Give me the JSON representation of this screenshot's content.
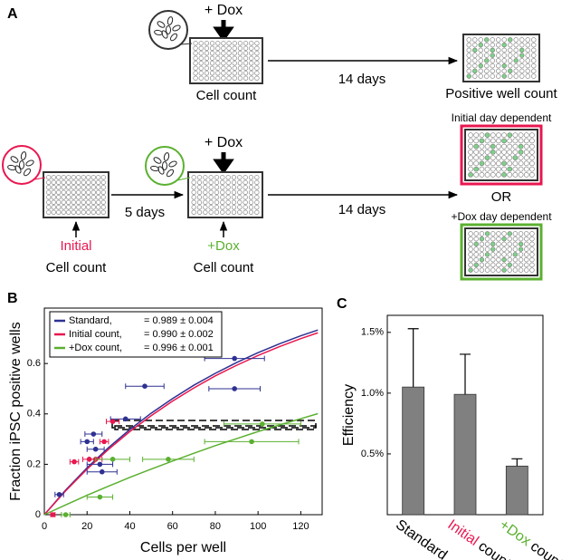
{
  "panel_a": {
    "label": "A",
    "top": {
      "dox": "+ Dox",
      "cell_count": "Cell count",
      "duration": "14 days",
      "result": "Positive well count"
    },
    "bottom": {
      "initial": "Initial",
      "initial_count": "Cell count",
      "first_duration": "5 days",
      "dox": "+ Dox",
      "dox_label": "+Dox",
      "dox_count": "Cell count",
      "second_duration": "14 days",
      "or": "OR",
      "initial_result": "Initial day dependent",
      "dox_result": "+Dox day dependent"
    }
  },
  "chart_data": [
    {
      "panel_label": "B",
      "type": "scatter",
      "xlabel": "Cells per well",
      "ylabel": "Fraction iPSC positive wells",
      "xlim": [
        0,
        130
      ],
      "ylim": [
        0,
        0.82
      ],
      "xticks": [
        0,
        20,
        40,
        60,
        80,
        100,
        120
      ],
      "yticks": [
        0,
        0.2,
        0.4,
        0.6
      ],
      "legend": "upper left",
      "series": [
        {
          "name": "Standard,",
          "fit_label": "= 0.989 ± 0.004",
          "color": "#2e3192",
          "x": [
            7,
            20,
            23,
            24,
            26,
            27,
            38,
            47,
            89,
            89
          ],
          "values": [
            0.08,
            0.29,
            0.32,
            0.26,
            0.2,
            0.17,
            0.38,
            0.51,
            0.62,
            0.5
          ],
          "xerr": [
            2,
            3,
            4,
            4,
            6,
            7,
            7,
            9,
            14,
            12
          ],
          "fit_x": [
            0,
            10,
            20,
            30,
            40,
            50,
            60,
            70,
            80,
            90,
            100,
            110,
            120,
            128
          ],
          "fit_y": [
            0,
            0.098,
            0.186,
            0.266,
            0.338,
            0.403,
            0.461,
            0.514,
            0.561,
            0.604,
            0.643,
            0.678,
            0.71,
            0.733
          ]
        },
        {
          "name": "Initial count,",
          "fit_label": "= 0.990 ± 0.002",
          "color": "#e8174f",
          "x": [
            4,
            14,
            21,
            24,
            28,
            32
          ],
          "values": [
            0,
            0.21,
            0.22,
            0.22,
            0.29,
            0.37
          ],
          "xerr": [
            1,
            2,
            3,
            3,
            2,
            3
          ],
          "fit_x": [
            0,
            10,
            20,
            30,
            40,
            50,
            60,
            70,
            80,
            90,
            100,
            110,
            120,
            128
          ],
          "fit_y": [
            0,
            0.095,
            0.181,
            0.259,
            0.33,
            0.393,
            0.451,
            0.503,
            0.551,
            0.593,
            0.632,
            0.667,
            0.699,
            0.722
          ]
        },
        {
          "name": "+Dox count,",
          "fit_label": "= 0.996 ± 0.001",
          "color": "#5bb030",
          "x": [
            10,
            26,
            32,
            58,
            97,
            102
          ],
          "values": [
            0,
            0.07,
            0.22,
            0.22,
            0.29,
            0.36
          ],
          "xerr": [
            2,
            6,
            8,
            12,
            22,
            18
          ],
          "fit_x": [
            0,
            10,
            20,
            30,
            40,
            50,
            60,
            70,
            80,
            90,
            100,
            110,
            120,
            128
          ],
          "fit_y": [
            0,
            0.039,
            0.077,
            0.113,
            0.148,
            0.181,
            0.213,
            0.244,
            0.274,
            0.302,
            0.33,
            0.356,
            0.381,
            0.401
          ]
        }
      ]
    },
    {
      "panel_label": "C",
      "type": "bar",
      "ylabel": "Efficiency",
      "categories": [
        [
          "Standard"
        ],
        [
          "Initial",
          "count"
        ],
        [
          "+Dox",
          "count"
        ]
      ],
      "category_colors": [
        [
          "#000000"
        ],
        [
          "#e8174f",
          "#000000"
        ],
        [
          "#5bb030",
          "#000000"
        ]
      ],
      "values": [
        1.05,
        0.99,
        0.4
      ],
      "errors": [
        0.48,
        0.33,
        0.06
      ],
      "color": "#808080",
      "ylim": [
        0,
        1.64
      ],
      "yticks": [
        {
          "value": 0.5,
          "label": "0.5%"
        },
        {
          "value": 1.0,
          "label": "1.0%"
        },
        {
          "value": 1.5,
          "label": "1.5%"
        }
      ]
    }
  ]
}
